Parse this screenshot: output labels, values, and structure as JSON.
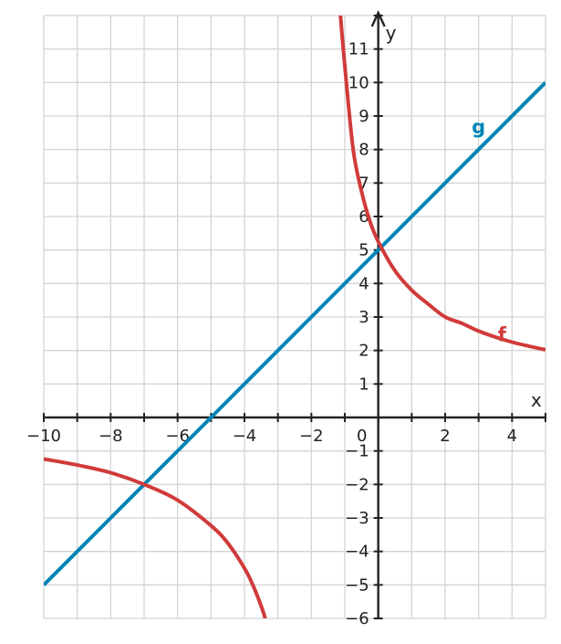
{
  "chart_data": {
    "type": "line",
    "title": "",
    "xlabel": "x",
    "ylabel": "y",
    "xlim": [
      -10,
      5
    ],
    "ylim": [
      -6,
      12
    ],
    "grid": true,
    "minor_grid_step": 1,
    "x_ticks": [
      {
        "value": -10,
        "label": "−10"
      },
      {
        "value": -8,
        "label": "−8"
      },
      {
        "value": -6,
        "label": "−6"
      },
      {
        "value": -4,
        "label": "−4"
      },
      {
        "value": -2,
        "label": "−2"
      },
      {
        "value": 0,
        "label": "0"
      },
      {
        "value": 2,
        "label": "2"
      },
      {
        "value": 4,
        "label": "4"
      }
    ],
    "y_ticks": [
      {
        "value": -6,
        "label": "−6"
      },
      {
        "value": -5,
        "label": "−5"
      },
      {
        "value": -4,
        "label": "−4"
      },
      {
        "value": -3,
        "label": "−3"
      },
      {
        "value": -2,
        "label": "−2"
      },
      {
        "value": -1,
        "label": "−1"
      },
      {
        "value": 1,
        "label": "1"
      },
      {
        "value": 2,
        "label": "2"
      },
      {
        "value": 3,
        "label": "3"
      },
      {
        "value": 4,
        "label": "4"
      },
      {
        "value": 5,
        "label": "5"
      },
      {
        "value": 6,
        "label": "6"
      },
      {
        "value": 7,
        "label": "7"
      },
      {
        "value": 8,
        "label": "8"
      },
      {
        "value": 9,
        "label": "9"
      },
      {
        "value": 10,
        "label": "10"
      },
      {
        "value": 11,
        "label": "11"
      }
    ],
    "series": [
      {
        "name": "g",
        "color": "#0085b8",
        "label_at": [
          3,
          8.7
        ],
        "points": [
          [
            -10,
            -5
          ],
          [
            -7,
            -2
          ],
          [
            -5,
            0
          ],
          [
            0,
            5
          ],
          [
            5,
            10
          ]
        ]
      },
      {
        "name": "f",
        "color": "#d13a3a",
        "label_at": [
          3.7,
          2.5
        ],
        "asymptote_x": -1.5,
        "branches": [
          [
            [
              -1.13,
              12
            ],
            [
              -1.0,
              10.5
            ],
            [
              -0.75,
              8.0
            ],
            [
              -0.5,
              6.75
            ],
            [
              -0.25,
              5.86
            ],
            [
              0,
              5.25
            ],
            [
              0.5,
              4.38
            ],
            [
              1,
              3.8
            ],
            [
              1.5,
              3.38
            ],
            [
              2,
              3.0
            ],
            [
              2.5,
              2.81
            ],
            [
              3,
              2.58
            ],
            [
              3.5,
              2.4
            ],
            [
              4,
              2.25
            ],
            [
              4.5,
              2.13
            ],
            [
              5,
              2.02
            ]
          ],
          [
            [
              -10,
              -1.24
            ],
            [
              -9,
              -1.42
            ],
            [
              -8,
              -1.65
            ],
            [
              -7,
              -2.0
            ],
            [
              -6,
              -2.47
            ],
            [
              -5,
              -3.23
            ],
            [
              -4.5,
              -3.75
            ],
            [
              -4,
              -4.5
            ],
            [
              -3.75,
              -5.0
            ],
            [
              -3.5,
              -5.63
            ],
            [
              -3.38,
              -6.0
            ]
          ]
        ]
      }
    ]
  }
}
